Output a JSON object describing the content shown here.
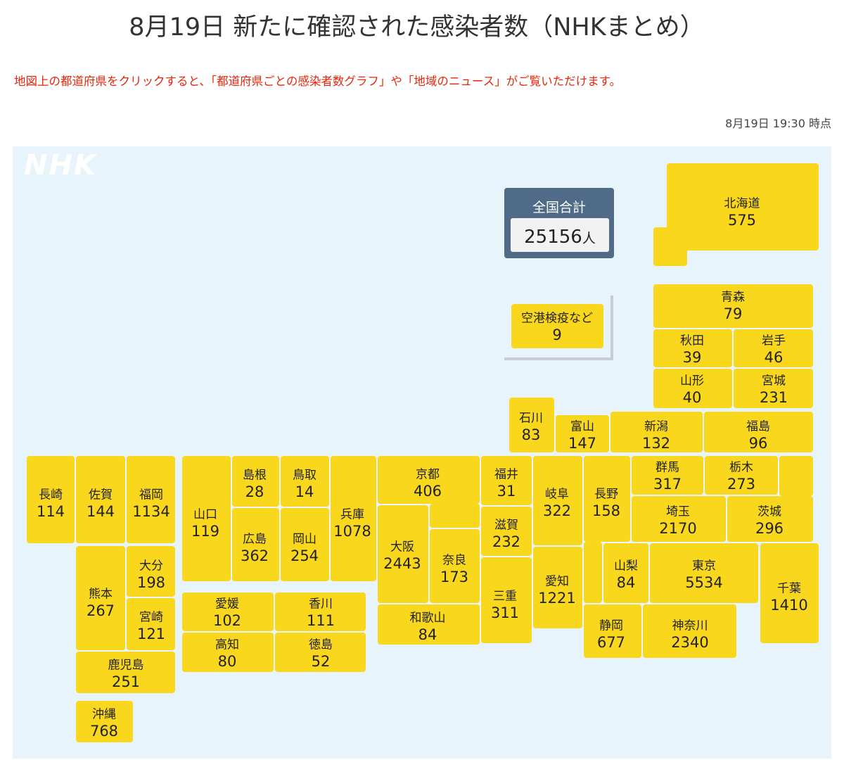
{
  "header": {
    "title": "8月19日 新たに確認された感染者数（NHKまとめ）",
    "note": "地図上の都道府県をクリックすると、「都道府県ごとの感染者数グラフ」や「地域のニュース」がご覧いただけます。",
    "timestamp": "8月19日 19:30 時点"
  },
  "logo": "NHK",
  "total": {
    "label": "全国合計",
    "value": 25156,
    "unit": "人"
  },
  "prefectures": [
    {
      "name": "北海道",
      "value": 575
    },
    {
      "name": "青森",
      "value": 79
    },
    {
      "name": "秋田",
      "value": 39
    },
    {
      "name": "岩手",
      "value": 46
    },
    {
      "name": "山形",
      "value": 40
    },
    {
      "name": "宮城",
      "value": 231
    },
    {
      "name": "石川",
      "value": 83
    },
    {
      "name": "富山",
      "value": 147
    },
    {
      "name": "新潟",
      "value": 132
    },
    {
      "name": "福島",
      "value": 96
    },
    {
      "name": "群馬",
      "value": 317
    },
    {
      "name": "栃木",
      "value": 273
    },
    {
      "name": "茨城",
      "value": 296
    },
    {
      "name": "埼玉",
      "value": 2170
    },
    {
      "name": "長野",
      "value": 158
    },
    {
      "name": "山梨",
      "value": 84
    },
    {
      "name": "東京",
      "value": 5534
    },
    {
      "name": "千葉",
      "value": 1410
    },
    {
      "name": "静岡",
      "value": 677
    },
    {
      "name": "神奈川",
      "value": 2340
    },
    {
      "name": "岐阜",
      "value": 322
    },
    {
      "name": "愛知",
      "value": 1221
    },
    {
      "name": "福井",
      "value": 31
    },
    {
      "name": "滋賀",
      "value": 232
    },
    {
      "name": "三重",
      "value": 311
    },
    {
      "name": "京都",
      "value": 406
    },
    {
      "name": "大阪",
      "value": 2443
    },
    {
      "name": "奈良",
      "value": 173
    },
    {
      "name": "和歌山",
      "value": 84
    },
    {
      "name": "兵庫",
      "value": 1078
    },
    {
      "name": "鳥取",
      "value": 14
    },
    {
      "name": "島根",
      "value": 28
    },
    {
      "name": "岡山",
      "value": 254
    },
    {
      "name": "広島",
      "value": 362
    },
    {
      "name": "山口",
      "value": 119
    },
    {
      "name": "愛媛",
      "value": 102
    },
    {
      "name": "香川",
      "value": 111
    },
    {
      "name": "高知",
      "value": 80
    },
    {
      "name": "徳島",
      "value": 52
    },
    {
      "name": "長崎",
      "value": 114
    },
    {
      "name": "佐賀",
      "value": 144
    },
    {
      "name": "福岡",
      "value": 1134
    },
    {
      "name": "熊本",
      "value": 267
    },
    {
      "name": "大分",
      "value": 198
    },
    {
      "name": "宮崎",
      "value": 121
    },
    {
      "name": "鹿児島",
      "value": 251
    },
    {
      "name": "沖縄",
      "value": 768
    },
    {
      "name": "空港検疫など",
      "value": 9
    }
  ]
}
